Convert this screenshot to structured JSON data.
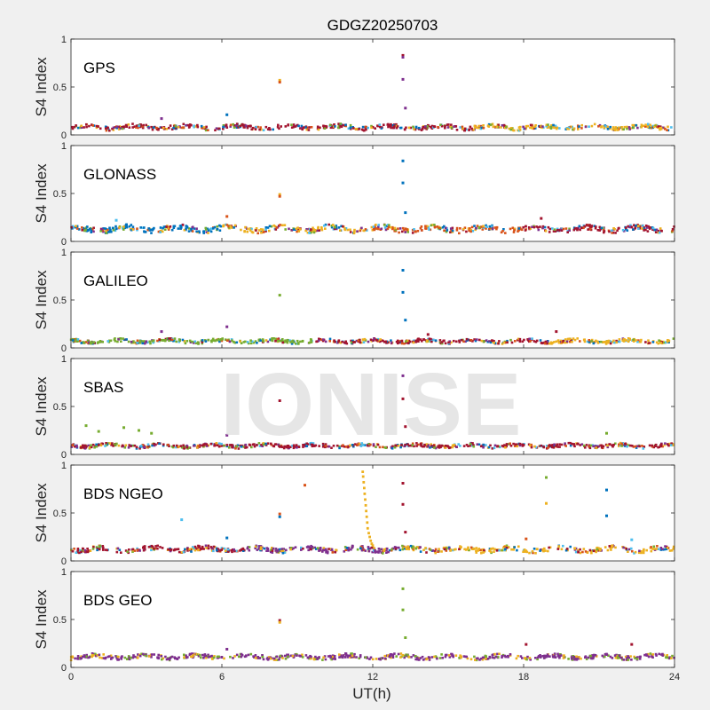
{
  "title": "GDGZ20250703",
  "watermark": "IONISE",
  "xlabel": "UT(h)",
  "colors": {
    "blue": "#0072bd",
    "orange": "#d95319",
    "yellow": "#edb120",
    "purple": "#7e2f8e",
    "green": "#77ac30",
    "cyan": "#4dbeee",
    "red": "#a2142f"
  },
  "chart_data": [
    {
      "type": "scatter",
      "panel": "GPS",
      "ylabel": "S4 Index",
      "xlim": [
        0,
        24
      ],
      "ylim": [
        0,
        1
      ],
      "xticks": [
        0,
        6,
        12,
        18,
        24
      ],
      "yticks": [
        0,
        0.5,
        1
      ],
      "xticklabels": [
        "",
        "",
        "",
        "",
        ""
      ],
      "yticklabels": [
        "0",
        "0.5",
        "1"
      ],
      "band": {
        "center": 0.08,
        "spread": 0.03
      },
      "colors": [
        "blue",
        "orange",
        "yellow",
        "purple",
        "cyan",
        "red",
        "green"
      ],
      "band_segments": [
        [
          0,
          16,
          "red"
        ],
        [
          16,
          24,
          "yellow"
        ]
      ],
      "outliers": [
        {
          "x": 8.3,
          "y": 0.57,
          "color": "yellow"
        },
        {
          "x": 8.3,
          "y": 0.55,
          "color": "orange"
        },
        {
          "x": 13.2,
          "y": 0.83,
          "color": "red"
        },
        {
          "x": 13.2,
          "y": 0.81,
          "color": "purple"
        },
        {
          "x": 13.2,
          "y": 0.58,
          "color": "purple"
        },
        {
          "x": 13.3,
          "y": 0.28,
          "color": "purple"
        },
        {
          "x": 6.2,
          "y": 0.21,
          "color": "blue"
        },
        {
          "x": 3.6,
          "y": 0.17,
          "color": "purple"
        }
      ]
    },
    {
      "type": "scatter",
      "panel": "GLONASS",
      "ylabel": "S4 Index",
      "xlim": [
        0,
        24
      ],
      "ylim": [
        0,
        1
      ],
      "xticks": [
        0,
        6,
        12,
        18,
        24
      ],
      "yticks": [
        0,
        0.5,
        1
      ],
      "xticklabels": [
        "",
        "",
        "",
        "",
        ""
      ],
      "yticklabels": [
        "0",
        "0.5",
        "1"
      ],
      "band": {
        "center": 0.13,
        "spread": 0.04
      },
      "colors": [
        "blue",
        "orange",
        "yellow",
        "purple",
        "cyan",
        "red",
        "green"
      ],
      "band_segments": [
        [
          0,
          6,
          "blue"
        ],
        [
          6,
          12,
          "yellow"
        ],
        [
          12,
          18,
          "orange"
        ],
        [
          18,
          24,
          "red"
        ]
      ],
      "outliers": [
        {
          "x": 8.3,
          "y": 0.49,
          "color": "yellow"
        },
        {
          "x": 8.3,
          "y": 0.47,
          "color": "orange"
        },
        {
          "x": 13.2,
          "y": 0.84,
          "color": "blue"
        },
        {
          "x": 13.2,
          "y": 0.61,
          "color": "blue"
        },
        {
          "x": 13.3,
          "y": 0.3,
          "color": "blue"
        },
        {
          "x": 6.2,
          "y": 0.26,
          "color": "orange"
        },
        {
          "x": 1.8,
          "y": 0.22,
          "color": "cyan"
        },
        {
          "x": 18.7,
          "y": 0.24,
          "color": "red"
        }
      ]
    },
    {
      "type": "scatter",
      "panel": "GALILEO",
      "ylabel": "S4 Index",
      "xlim": [
        0,
        24
      ],
      "ylim": [
        0,
        1
      ],
      "xticks": [
        0,
        6,
        12,
        18,
        24
      ],
      "yticks": [
        0,
        0.5,
        1
      ],
      "xticklabels": [
        "",
        "",
        "",
        "",
        ""
      ],
      "yticklabels": [
        "0",
        "0.5",
        "1"
      ],
      "band": {
        "center": 0.07,
        "spread": 0.025
      },
      "colors": [
        "blue",
        "orange",
        "yellow",
        "purple",
        "cyan",
        "red",
        "green"
      ],
      "band_segments": [
        [
          0,
          10,
          "green"
        ],
        [
          10,
          19,
          "red"
        ],
        [
          19,
          24,
          "yellow"
        ]
      ],
      "outliers": [
        {
          "x": 8.3,
          "y": 0.55,
          "color": "green"
        },
        {
          "x": 13.2,
          "y": 0.81,
          "color": "blue"
        },
        {
          "x": 13.2,
          "y": 0.58,
          "color": "blue"
        },
        {
          "x": 13.3,
          "y": 0.29,
          "color": "blue"
        },
        {
          "x": 6.2,
          "y": 0.22,
          "color": "purple"
        },
        {
          "x": 3.6,
          "y": 0.17,
          "color": "purple"
        },
        {
          "x": 14.2,
          "y": 0.14,
          "color": "red"
        },
        {
          "x": 19.3,
          "y": 0.17,
          "color": "red"
        }
      ]
    },
    {
      "type": "scatter",
      "panel": "SBAS",
      "ylabel": "S4 Index",
      "xlim": [
        0,
        24
      ],
      "ylim": [
        0,
        1
      ],
      "xticks": [
        0,
        6,
        12,
        18,
        24
      ],
      "yticks": [
        0,
        0.5,
        1
      ],
      "xticklabels": [
        "",
        "",
        "",
        "",
        ""
      ],
      "yticklabels": [
        "0",
        "0.5",
        "1"
      ],
      "band": {
        "center": 0.09,
        "spread": 0.025
      },
      "colors": [
        "blue",
        "orange",
        "yellow",
        "purple",
        "cyan",
        "red",
        "green"
      ],
      "band_segments": [
        [
          0,
          24,
          "red"
        ]
      ],
      "outliers": [
        {
          "x": 8.3,
          "y": 0.56,
          "color": "red"
        },
        {
          "x": 13.2,
          "y": 0.82,
          "color": "purple"
        },
        {
          "x": 13.2,
          "y": 0.58,
          "color": "red"
        },
        {
          "x": 13.3,
          "y": 0.29,
          "color": "red"
        },
        {
          "x": 0.6,
          "y": 0.3,
          "color": "green"
        },
        {
          "x": 1.1,
          "y": 0.24,
          "color": "green"
        },
        {
          "x": 2.1,
          "y": 0.28,
          "color": "green"
        },
        {
          "x": 2.7,
          "y": 0.25,
          "color": "green"
        },
        {
          "x": 3.2,
          "y": 0.22,
          "color": "green"
        },
        {
          "x": 21.3,
          "y": 0.22,
          "color": "green"
        },
        {
          "x": 6.2,
          "y": 0.2,
          "color": "purple"
        }
      ]
    },
    {
      "type": "scatter",
      "panel": "BDS NGEO",
      "ylabel": "S4 Index",
      "xlim": [
        0,
        24
      ],
      "ylim": [
        0,
        1
      ],
      "xticks": [
        0,
        6,
        12,
        18,
        24
      ],
      "yticks": [
        0,
        0.5,
        1
      ],
      "xticklabels": [
        "",
        "",
        "",
        "",
        ""
      ],
      "yticklabels": [
        "0",
        "0.5",
        "1"
      ],
      "band": {
        "center": 0.12,
        "spread": 0.035
      },
      "colors": [
        "blue",
        "orange",
        "yellow",
        "purple",
        "cyan",
        "red",
        "green"
      ],
      "band_segments": [
        [
          0,
          7,
          "red"
        ],
        [
          7,
          13,
          "purple"
        ],
        [
          13,
          24,
          "yellow"
        ]
      ],
      "spike": {
        "color": "yellow",
        "points": [
          [
            11.6,
            0.93
          ],
          [
            11.62,
            0.88
          ],
          [
            11.64,
            0.82
          ],
          [
            11.66,
            0.76
          ],
          [
            11.68,
            0.7
          ],
          [
            11.7,
            0.64
          ],
          [
            11.72,
            0.58
          ],
          [
            11.74,
            0.52
          ],
          [
            11.76,
            0.46
          ],
          [
            11.78,
            0.4
          ],
          [
            11.8,
            0.34
          ],
          [
            11.84,
            0.29
          ],
          [
            11.88,
            0.25
          ],
          [
            11.92,
            0.21
          ],
          [
            11.96,
            0.18
          ],
          [
            12.0,
            0.16
          ]
        ]
      },
      "outliers": [
        {
          "x": 4.4,
          "y": 0.43,
          "color": "cyan"
        },
        {
          "x": 8.3,
          "y": 0.49,
          "color": "orange"
        },
        {
          "x": 8.3,
          "y": 0.46,
          "color": "blue"
        },
        {
          "x": 9.3,
          "y": 0.79,
          "color": "orange"
        },
        {
          "x": 13.2,
          "y": 0.81,
          "color": "red"
        },
        {
          "x": 13.2,
          "y": 0.59,
          "color": "red"
        },
        {
          "x": 13.3,
          "y": 0.3,
          "color": "red"
        },
        {
          "x": 18.9,
          "y": 0.87,
          "color": "green"
        },
        {
          "x": 18.9,
          "y": 0.6,
          "color": "yellow"
        },
        {
          "x": 21.3,
          "y": 0.74,
          "color": "blue"
        },
        {
          "x": 21.3,
          "y": 0.47,
          "color": "blue"
        },
        {
          "x": 18.1,
          "y": 0.23,
          "color": "orange"
        },
        {
          "x": 22.3,
          "y": 0.22,
          "color": "cyan"
        },
        {
          "x": 6.2,
          "y": 0.24,
          "color": "blue"
        }
      ]
    },
    {
      "type": "scatter",
      "panel": "BDS GEO",
      "ylabel": "S4 Index",
      "xlim": [
        0,
        24
      ],
      "ylim": [
        0,
        1
      ],
      "xticks": [
        0,
        6,
        12,
        18,
        24
      ],
      "yticks": [
        0,
        0.5,
        1
      ],
      "xticklabels": [
        "0",
        "6",
        "12",
        "18",
        "24"
      ],
      "yticklabels": [
        "0",
        "0.5",
        "1"
      ],
      "band": {
        "center": 0.11,
        "spread": 0.03
      },
      "colors": [
        "purple",
        "yellow",
        "green"
      ],
      "band_segments": [
        [
          0,
          24,
          "purple"
        ]
      ],
      "outliers": [
        {
          "x": 8.3,
          "y": 0.49,
          "color": "red"
        },
        {
          "x": 8.3,
          "y": 0.47,
          "color": "yellow"
        },
        {
          "x": 13.2,
          "y": 0.82,
          "color": "green"
        },
        {
          "x": 13.2,
          "y": 0.6,
          "color": "green"
        },
        {
          "x": 13.3,
          "y": 0.31,
          "color": "green"
        },
        {
          "x": 6.2,
          "y": 0.19,
          "color": "purple"
        },
        {
          "x": 18.1,
          "y": 0.24,
          "color": "red"
        },
        {
          "x": 22.3,
          "y": 0.24,
          "color": "red"
        }
      ]
    }
  ]
}
